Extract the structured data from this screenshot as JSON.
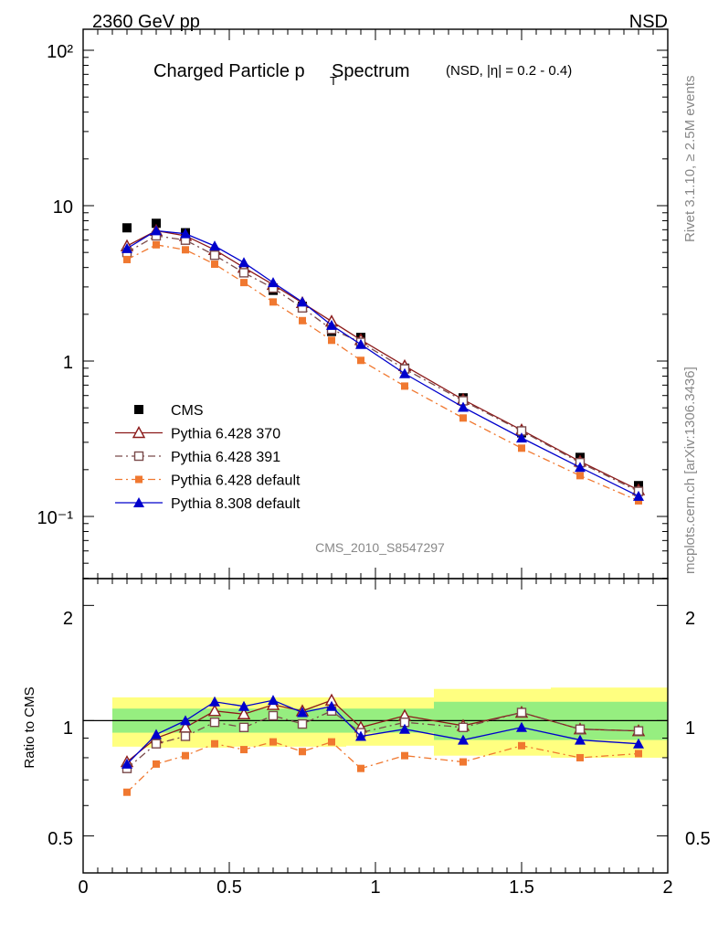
{
  "header": {
    "energy_label": "2360 GeV pp",
    "process_label": "NSD"
  },
  "side_text": {
    "rivet": "Rivet 3.1.10, ≥ 2.5M events",
    "mcplots": "mcplots.cern.ch [arXiv:1306.3436]"
  },
  "chart_data": [
    {
      "type": "scatter",
      "title_main": "Charged Particle p",
      "title_sub": "T",
      "title_rest": " Spectrum",
      "title_small": "(NSD, |η| = 0.2 - 0.4)",
      "analysis_id": "CMS_2010_S8547297",
      "xlim": [
        0,
        2
      ],
      "ylim": [
        0.04,
        130
      ],
      "yscale": "log",
      "y_ticks": [
        "10⁻¹",
        "1",
        "10",
        "10²"
      ],
      "legend_position": "bottom-left",
      "x": [
        0.15,
        0.25,
        0.35,
        0.45,
        0.55,
        0.65,
        0.75,
        0.85,
        0.95,
        1.1,
        1.3,
        1.5,
        1.7,
        1.9
      ],
      "series": [
        {
          "name": "CMS",
          "color": "#000000",
          "marker": "square-filled",
          "line": "none",
          "values": [
            7.2,
            7.7,
            6.7,
            4.9,
            3.9,
            2.85,
            2.25,
            1.55,
            1.42,
            0.9,
            0.58,
            0.345,
            0.24,
            0.158
          ]
        },
        {
          "name": "Pythia 6.428 370",
          "color": "#8b1a1a",
          "marker": "triangle-open",
          "line": "solid",
          "values": [
            5.5,
            6.9,
            6.4,
            5.2,
            4.0,
            3.1,
            2.37,
            1.8,
            1.37,
            0.93,
            0.565,
            0.36,
            0.226,
            0.148
          ]
        },
        {
          "name": "Pythia 6.428 391",
          "color": "#7a4a4a",
          "marker": "square-open",
          "line": "dashdot",
          "values": [
            5.0,
            6.4,
            6.0,
            4.8,
            3.7,
            2.95,
            2.2,
            1.6,
            1.32,
            0.89,
            0.555,
            0.355,
            0.222,
            0.145
          ]
        },
        {
          "name": "Pythia 6.428 default",
          "color": "#f07830",
          "marker": "square-filled-small",
          "line": "dashdot",
          "values": [
            4.5,
            5.6,
            5.2,
            4.2,
            3.2,
            2.4,
            1.82,
            1.36,
            1.01,
            0.69,
            0.43,
            0.275,
            0.183,
            0.126
          ]
        },
        {
          "name": "Pythia 8.308 default",
          "color": "#0000cc",
          "marker": "triangle-filled",
          "line": "solid",
          "values": [
            5.3,
            6.9,
            6.6,
            5.5,
            4.3,
            3.2,
            2.4,
            1.7,
            1.28,
            0.83,
            0.505,
            0.32,
            0.207,
            0.135
          ]
        }
      ]
    },
    {
      "type": "line",
      "ylabel": "Ratio to CMS",
      "xlim": [
        0,
        2
      ],
      "ylim": [
        0.4,
        2.35
      ],
      "yscale": "log",
      "x_ticks": [
        "0",
        "0.5",
        "1",
        "1.5",
        "2"
      ],
      "y_ticks": [
        "0.5",
        "1",
        "2"
      ],
      "reference_line": 1,
      "bands": {
        "edges": [
          0.1,
          0.2,
          0.3,
          0.4,
          0.5,
          0.6,
          0.7,
          0.8,
          0.9,
          1.0,
          1.2,
          1.4,
          1.6,
          1.8,
          2.0
        ],
        "yellow_color": "#ffff80",
        "green_color": "#96ee80",
        "yellow_lo": [
          0.855,
          0.85,
          0.85,
          0.85,
          0.855,
          0.855,
          0.855,
          0.855,
          0.86,
          0.86,
          0.81,
          0.81,
          0.8,
          0.8
        ],
        "yellow_hi": [
          1.15,
          1.15,
          1.15,
          1.15,
          1.15,
          1.15,
          1.15,
          1.15,
          1.15,
          1.15,
          1.21,
          1.21,
          1.22,
          1.22
        ],
        "green_lo": [
          0.93,
          0.93,
          0.93,
          0.93,
          0.93,
          0.93,
          0.93,
          0.93,
          0.93,
          0.93,
          0.89,
          0.89,
          0.89,
          0.89
        ],
        "green_hi": [
          1.075,
          1.075,
          1.075,
          1.075,
          1.075,
          1.075,
          1.075,
          1.075,
          1.075,
          1.075,
          1.12,
          1.12,
          1.12,
          1.12
        ]
      },
      "x": [
        0.15,
        0.25,
        0.35,
        0.45,
        0.55,
        0.65,
        0.75,
        0.85,
        0.95,
        1.1,
        1.3,
        1.5,
        1.7,
        1.9
      ],
      "series": [
        {
          "name": "Pythia 6.428 370",
          "color": "#8b1a1a",
          "marker": "triangle-open",
          "line": "solid",
          "values": [
            0.78,
            0.9,
            0.96,
            1.06,
            1.04,
            1.1,
            1.06,
            1.13,
            0.96,
            1.03,
            0.97,
            1.05,
            0.95,
            0.94
          ]
        },
        {
          "name": "Pythia 6.428 391",
          "color": "#7a4a4a",
          "marker": "square-open",
          "line": "dashdot",
          "values": [
            0.75,
            0.87,
            0.91,
            0.99,
            0.96,
            1.03,
            0.98,
            1.06,
            0.93,
            0.99,
            0.96,
            1.05,
            0.95,
            0.94
          ]
        },
        {
          "name": "Pythia 6.428 default",
          "color": "#f07830",
          "marker": "square-filled-small",
          "line": "dashdot",
          "values": [
            0.65,
            0.77,
            0.81,
            0.87,
            0.84,
            0.88,
            0.83,
            0.88,
            0.75,
            0.81,
            0.78,
            0.86,
            0.8,
            0.82
          ]
        },
        {
          "name": "Pythia 8.308 default",
          "color": "#0000cc",
          "marker": "triangle-filled",
          "line": "solid",
          "values": [
            0.77,
            0.92,
            1.0,
            1.12,
            1.09,
            1.13,
            1.05,
            1.09,
            0.91,
            0.95,
            0.89,
            0.96,
            0.89,
            0.87
          ]
        }
      ]
    }
  ]
}
